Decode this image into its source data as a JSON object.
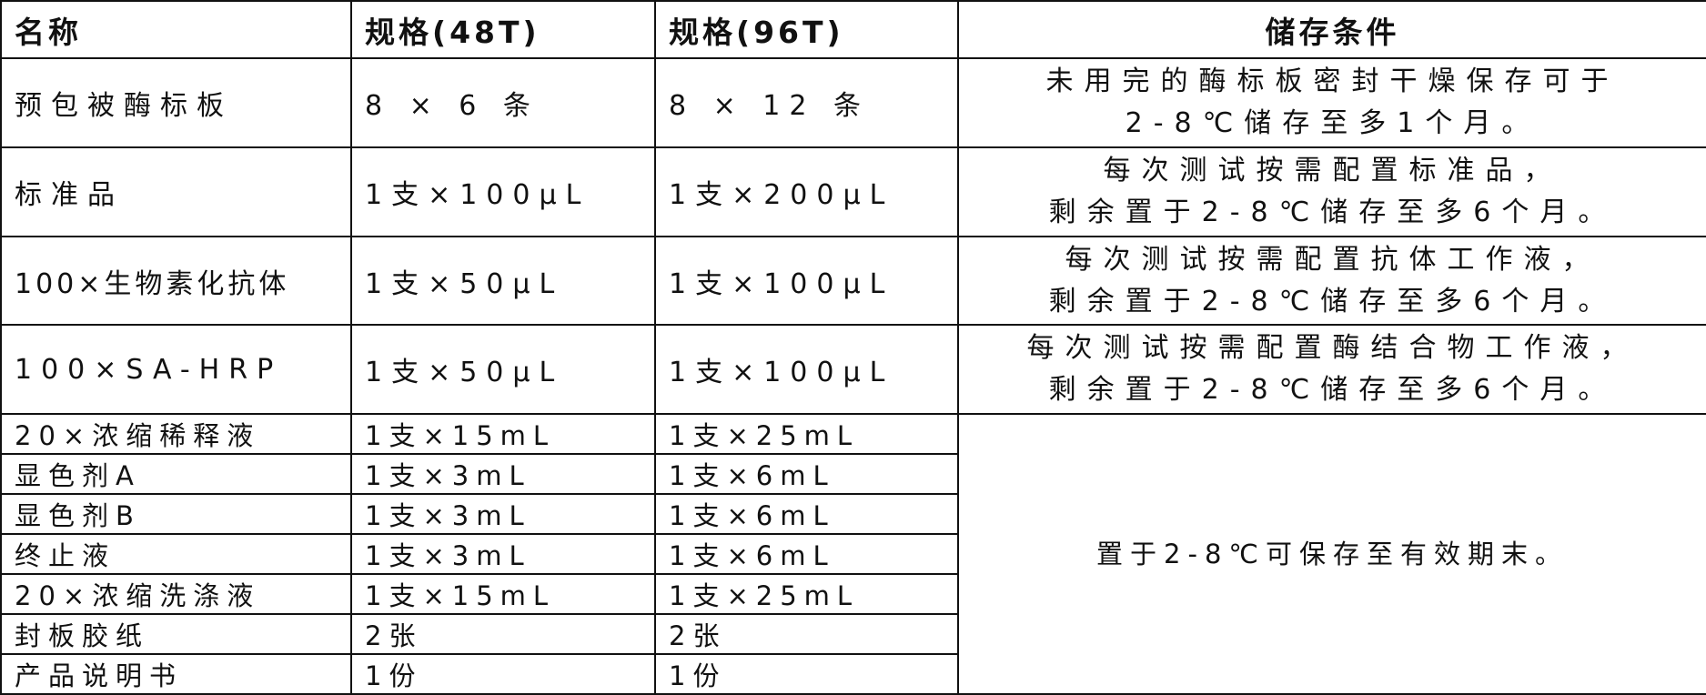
{
  "headers": [
    "名称",
    "规格(48T)",
    "规格(96T)",
    "储存条件"
  ],
  "rows": [
    {
      "name": "预包被酶标板",
      "spec48": "8 × 6 条",
      "spec96": "8 × 12 条",
      "storage": [
        "未用完的酶标板密封干燥保存可于",
        "2-8℃储存至多1个月。"
      ]
    },
    {
      "name": "标准品",
      "spec48": "1支×100μL",
      "spec96": "1支×200μL",
      "storage": [
        "每次测试按需配置标准品，",
        "剩余置于2-8℃储存至多6个月。"
      ]
    },
    {
      "name": "100×生物素化抗体",
      "spec48": "1支×50μL",
      "spec96": "1支×100μL",
      "storage": [
        "每次测试按需配置抗体工作液，",
        "剩余置于2-8℃储存至多6个月。"
      ]
    },
    {
      "name": "100×SA-HRP",
      "spec48": "1支×50μL",
      "spec96": "1支×100μL",
      "storage": [
        "每次测试按需配置酶结合物工作液，",
        "剩余置于2-8℃储存至多6个月。"
      ]
    },
    {
      "name": "20×浓缩稀释液",
      "spec48": "1支×15mL",
      "spec96": "1支×25mL"
    },
    {
      "name": "显色剂A",
      "spec48": "1支×3mL",
      "spec96": "1支×6mL"
    },
    {
      "name": "显色剂B",
      "spec48": "1支×3mL",
      "spec96": "1支×6mL"
    },
    {
      "name": "终止液",
      "spec48": "1支×3mL",
      "spec96": "1支×6mL"
    },
    {
      "name": "20×浓缩洗涤液",
      "spec48": "1支×15mL",
      "spec96": "1支×25mL"
    },
    {
      "name": "封板胶纸",
      "spec48": "2张",
      "spec96": "2张"
    },
    {
      "name": "产品说明书",
      "spec48": "1份",
      "spec96": "1份"
    }
  ],
  "shared_storage": "置于2-8℃可保存至有效期末。"
}
